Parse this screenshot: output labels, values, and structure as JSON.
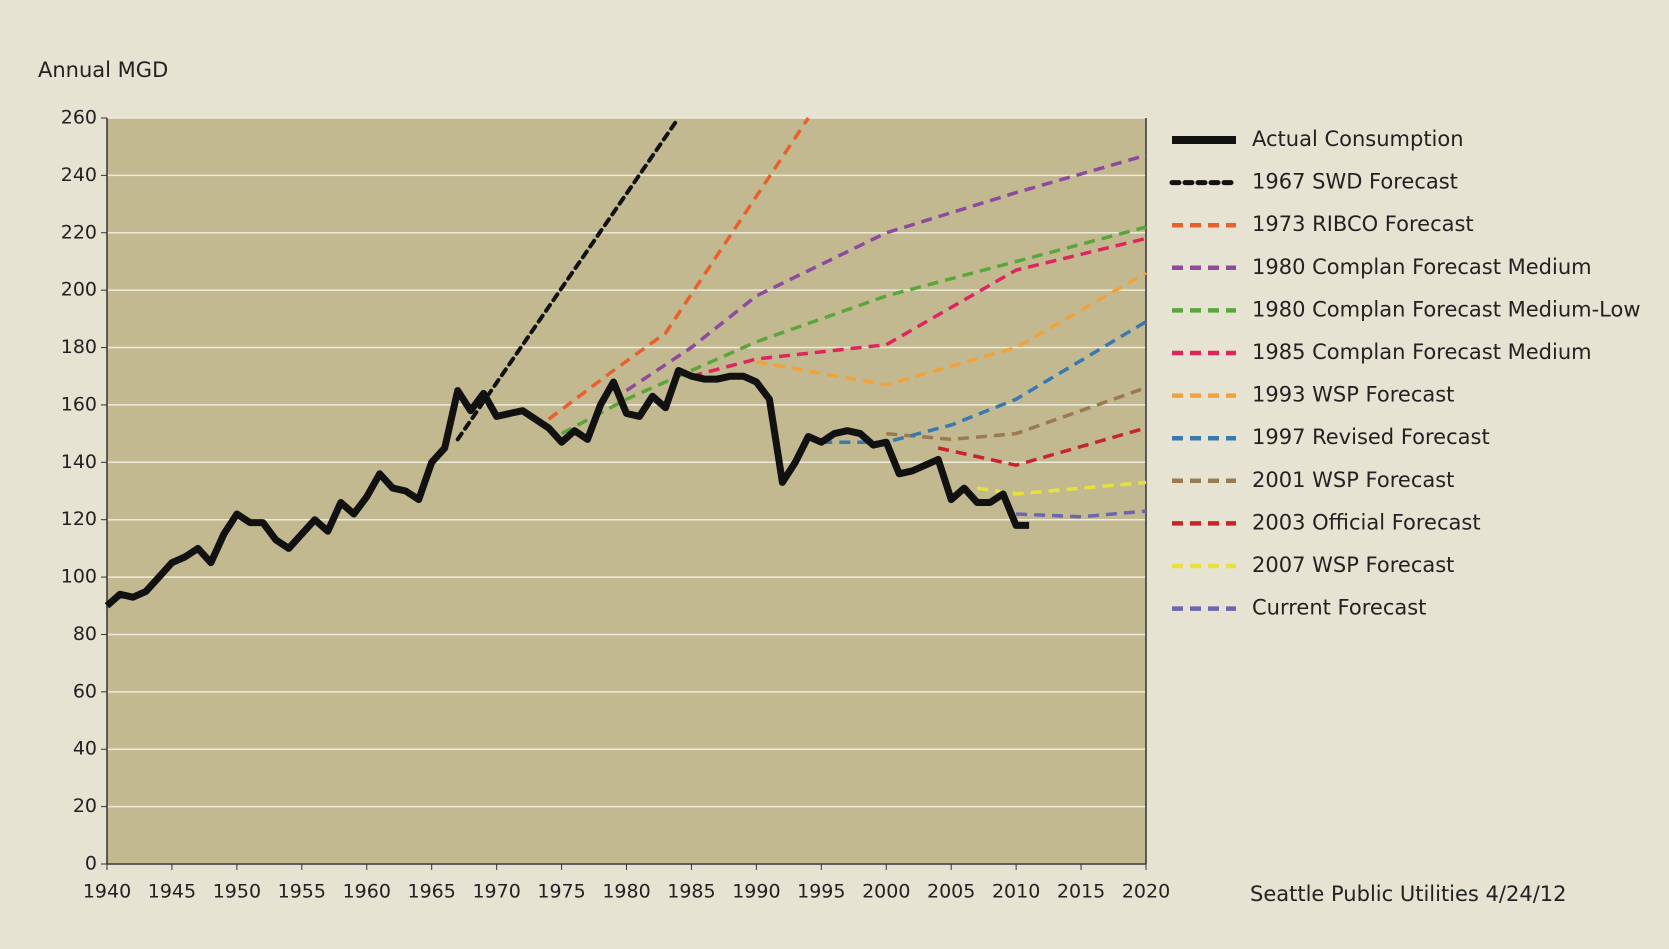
{
  "chart_data": {
    "type": "line",
    "y_label": "Annual MGD",
    "source": "Seattle Public Utilities 4/24/12",
    "xlim": [
      1940,
      2020
    ],
    "xticks": [
      1940,
      1945,
      1950,
      1955,
      1960,
      1965,
      1970,
      1975,
      1980,
      1985,
      1990,
      1995,
      2000,
      2005,
      2010,
      2015,
      2020
    ],
    "ylim": [
      0,
      260
    ],
    "yticks": [
      0,
      20,
      40,
      60,
      80,
      100,
      120,
      140,
      160,
      180,
      200,
      220,
      240,
      260
    ],
    "grid": true,
    "legend": "right",
    "series": [
      {
        "name": "Actual Consumption",
        "color": "#111111",
        "style": "solid",
        "x": [
          1940,
          1941,
          1942,
          1943,
          1944,
          1945,
          1946,
          1947,
          1948,
          1949,
          1950,
          1951,
          1952,
          1953,
          1954,
          1955,
          1956,
          1957,
          1958,
          1959,
          1960,
          1961,
          1962,
          1963,
          1964,
          1965,
          1966,
          1967,
          1968,
          1969,
          1970,
          1971,
          1972,
          1973,
          1974,
          1975,
          1976,
          1977,
          1978,
          1979,
          1980,
          1981,
          1982,
          1983,
          1984,
          1985,
          1986,
          1987,
          1988,
          1989,
          1990,
          1991,
          1992,
          1993,
          1994,
          1995,
          1996,
          1997,
          1998,
          1999,
          2000,
          2001,
          2002,
          2003,
          2004,
          2005,
          2006,
          2007,
          2008,
          2009,
          2010,
          2011
        ],
        "values": [
          90,
          94,
          93,
          95,
          100,
          105,
          107,
          110,
          105,
          115,
          122,
          119,
          119,
          113,
          110,
          115,
          120,
          116,
          126,
          122,
          128,
          136,
          131,
          130,
          127,
          140,
          145,
          165,
          158,
          164,
          156,
          157,
          158,
          155,
          152,
          147,
          151,
          148,
          160,
          168,
          157,
          156,
          163,
          159,
          172,
          170,
          169,
          169,
          170,
          170,
          168,
          162,
          133,
          140,
          149,
          147,
          150,
          151,
          150,
          146,
          147,
          136,
          137,
          139,
          141,
          127,
          131,
          126,
          126,
          129,
          118,
          118
        ]
      },
      {
        "name": "1967 SWD Forecast",
        "color": "#111111",
        "style": "dotted",
        "x": [
          1967,
          1984
        ],
        "values": [
          148,
          260
        ]
      },
      {
        "name": "1973 RIBCO Forecast",
        "color": "#e8602c",
        "style": "dashed",
        "x": [
          1974,
          1979,
          1983,
          1994
        ],
        "values": [
          155,
          172,
          185,
          260
        ]
      },
      {
        "name": "1980 Complan Forecast Medium",
        "color": "#8e4a9e",
        "style": "dashed",
        "x": [
          1980,
          1985,
          1990,
          2000,
          2010,
          2020
        ],
        "values": [
          165,
          180,
          198,
          220,
          234,
          247
        ]
      },
      {
        "name": "1980 Complan Forecast Medium-Low",
        "color": "#5aa63a",
        "style": "dashed",
        "x": [
          1975,
          1980,
          1985,
          1990,
          2000,
          2010,
          2020
        ],
        "values": [
          150,
          162,
          172,
          182,
          198,
          210,
          222
        ]
      },
      {
        "name": "1985 Complan Forecast Medium",
        "color": "#e0245e",
        "style": "dashed",
        "x": [
          1985,
          1990,
          2000,
          2010,
          2020
        ],
        "values": [
          170,
          176,
          181,
          207,
          218
        ]
      },
      {
        "name": "1993 WSP Forecast",
        "color": "#f0a23b",
        "style": "dashed",
        "x": [
          1990,
          2000,
          2010,
          2020
        ],
        "values": [
          175,
          167,
          180,
          206
        ]
      },
      {
        "name": "1997 Revised Forecast",
        "color": "#3a78b0",
        "style": "dashed",
        "x": [
          1995,
          2000,
          2005,
          2010,
          2020
        ],
        "values": [
          147,
          147,
          153,
          162,
          189
        ]
      },
      {
        "name": "2001 WSP Forecast",
        "color": "#9a7b4f",
        "style": "dashed",
        "x": [
          2000,
          2005,
          2010,
          2020
        ],
        "values": [
          150,
          148,
          150,
          166
        ]
      },
      {
        "name": "2003 Official Forecast",
        "color": "#c8242c",
        "style": "dashed",
        "x": [
          2004,
          2010,
          2020
        ],
        "values": [
          145,
          139,
          152
        ]
      },
      {
        "name": "2007 WSP Forecast",
        "color": "#e6e23a",
        "style": "dashed",
        "x": [
          2007,
          2010,
          2020
        ],
        "values": [
          131,
          129,
          133
        ]
      },
      {
        "name": "Current Forecast",
        "color": "#6a66b0",
        "style": "dashed",
        "x": [
          2010,
          2015,
          2020
        ],
        "values": [
          122,
          121,
          123
        ]
      }
    ]
  }
}
